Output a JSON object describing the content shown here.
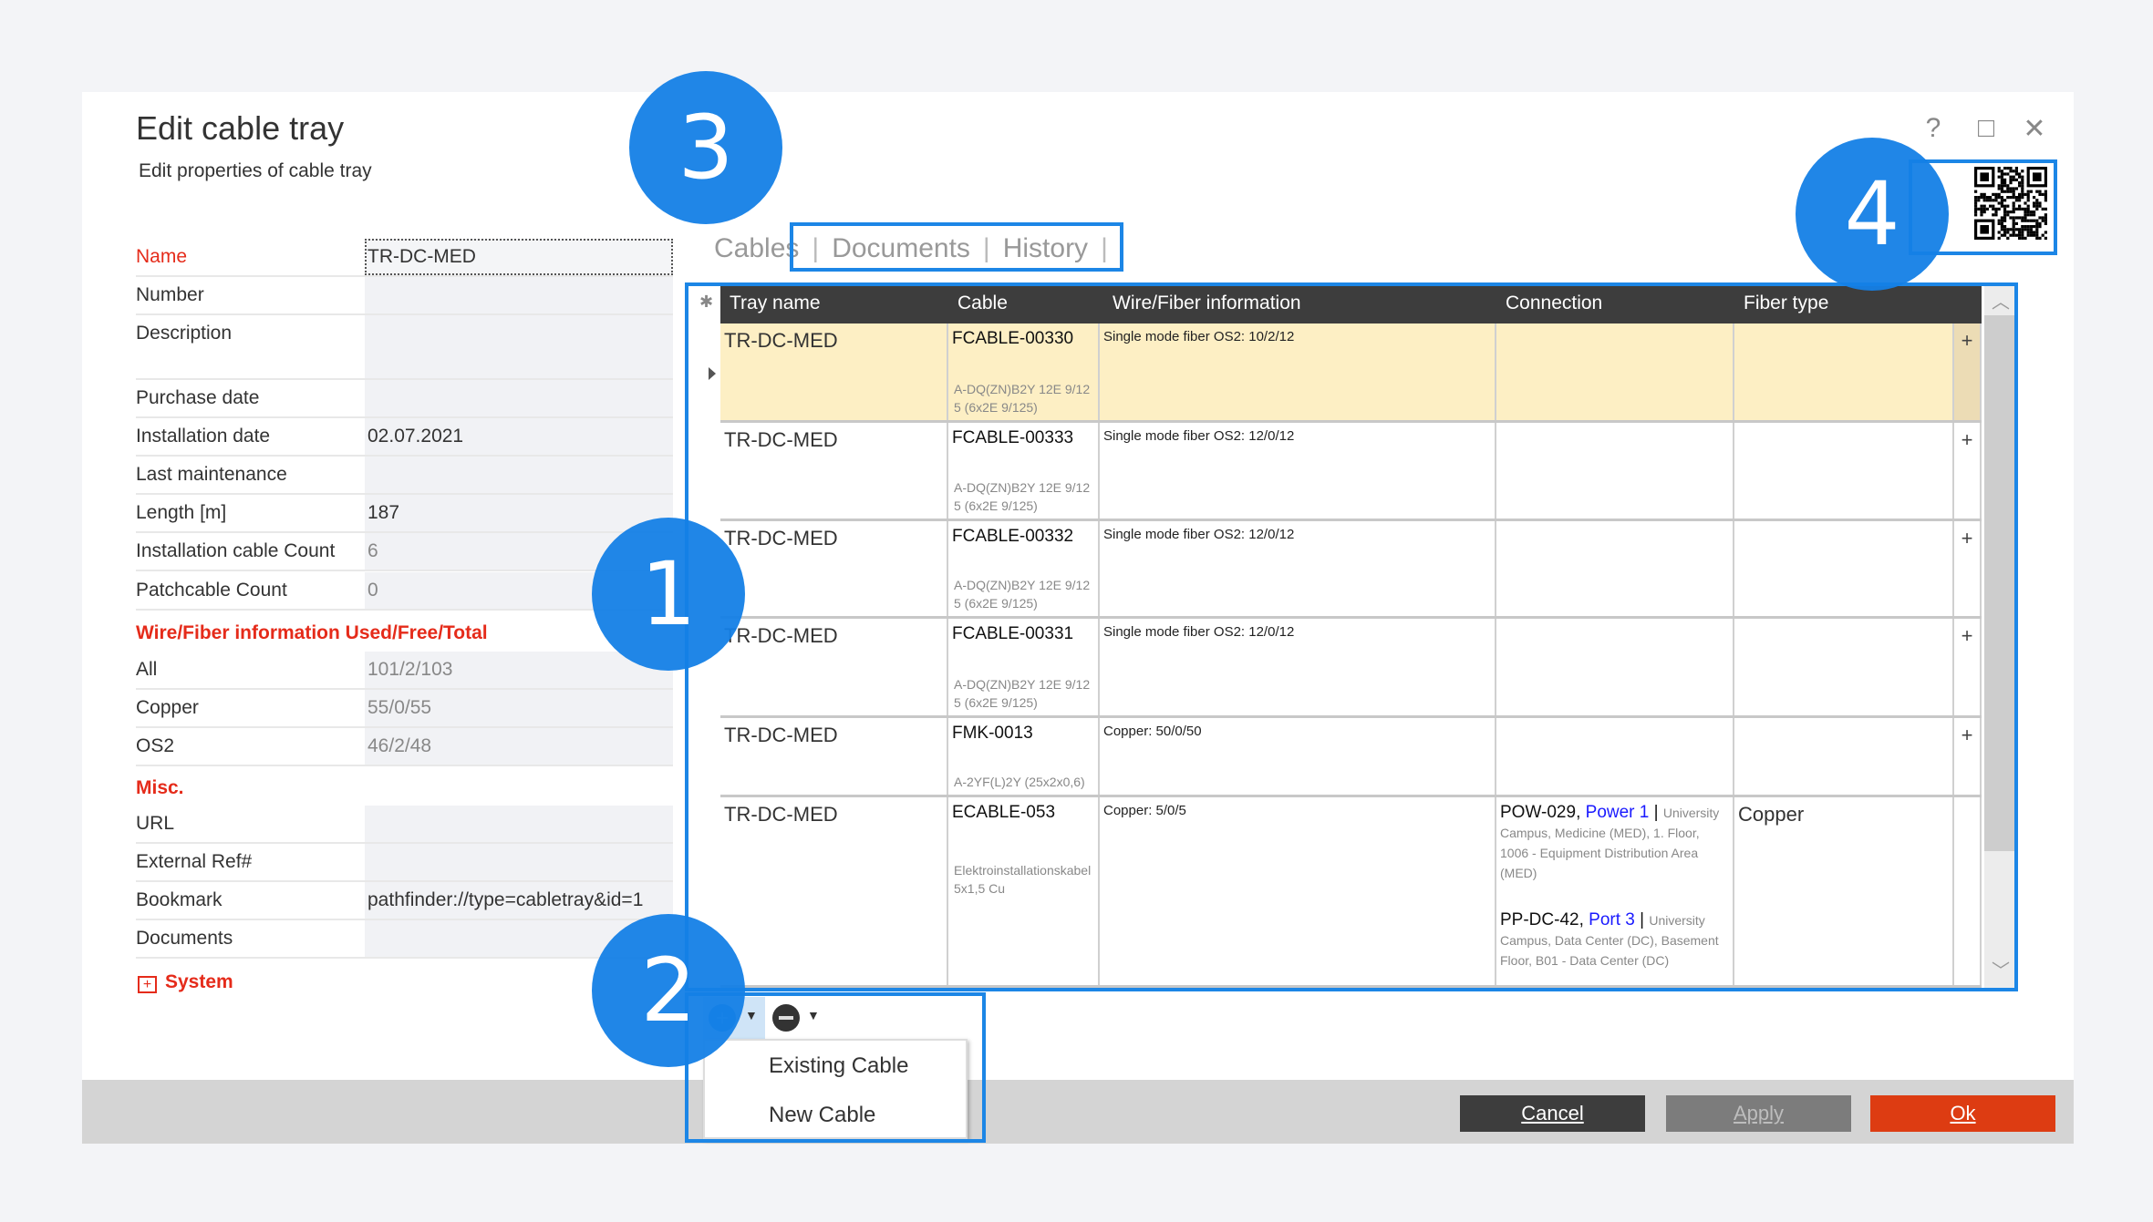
{
  "dialog": {
    "title": "Edit cable tray",
    "subtitle": "Edit properties of cable tray",
    "help_icon": "?",
    "maximize_icon": "□",
    "close_icon": "✕"
  },
  "form": {
    "rows": [
      {
        "label": "Name",
        "value": "TR-DC-MED"
      },
      {
        "label": "Number",
        "value": ""
      },
      {
        "label": "Description",
        "value": ""
      },
      {
        "label": "Purchase date",
        "value": ""
      },
      {
        "label": "Installation date",
        "value": "02.07.2021"
      },
      {
        "label": "Last maintenance",
        "value": ""
      },
      {
        "label": "Length [m]",
        "value": "187"
      },
      {
        "label": "Installation cable Count",
        "value": "6"
      },
      {
        "label": "Patchcable Count",
        "value": "0"
      }
    ],
    "wire_section": "Wire/Fiber information Used/Free/Total",
    "wire_rows": [
      {
        "label": "All",
        "value": "101/2/103"
      },
      {
        "label": "Copper",
        "value": "55/0/55"
      },
      {
        "label": "OS2",
        "value": "46/2/48"
      }
    ],
    "misc_section": "Misc.",
    "misc_rows": [
      {
        "label": "URL",
        "value": ""
      },
      {
        "label": "External Ref#",
        "value": ""
      },
      {
        "label": "Bookmark",
        "value": "pathfinder://type=cabletray&id=1"
      },
      {
        "label": "Documents",
        "value": ""
      }
    ],
    "system_section": "System",
    "system_expand": "+"
  },
  "tabs": [
    {
      "label": "Cables"
    },
    {
      "label": "Documents"
    },
    {
      "label": "History"
    }
  ],
  "grid": {
    "columns": [
      "Tray name",
      "Cable",
      "Wire/Fiber information",
      "Connection",
      "Fiber type"
    ],
    "new_row_icon": "✱",
    "rows": [
      {
        "tray": "TR-DC-MED",
        "cable": "FCABLE-00330",
        "cable_type": "A-DQ(ZN)B2Y 12E 9/125 (6x2E 9/125)",
        "wire": "Single mode fiber OS2: 10/2/12",
        "fiber": "",
        "expand": "+"
      },
      {
        "tray": "TR-DC-MED",
        "cable": "FCABLE-00333",
        "cable_type": "A-DQ(ZN)B2Y 12E 9/125 (6x2E 9/125)",
        "wire": "Single mode fiber OS2: 12/0/12",
        "fiber": "",
        "expand": "+"
      },
      {
        "tray": "TR-DC-MED",
        "cable": "FCABLE-00332",
        "cable_type": "A-DQ(ZN)B2Y 12E 9/125 (6x2E 9/125)",
        "wire": "Single mode fiber OS2: 12/0/12",
        "fiber": "",
        "expand": "+"
      },
      {
        "tray": "TR-DC-MED",
        "cable": "FCABLE-00331",
        "cable_type": "A-DQ(ZN)B2Y 12E 9/125 (6x2E 9/125)",
        "wire": "Single mode fiber OS2: 12/0/12",
        "fiber": "",
        "expand": "+"
      },
      {
        "tray": "TR-DC-MED",
        "cable": "FMK-0013",
        "cable_type": "A-2YF(L)2Y (25x2x0,6)",
        "wire": "Copper: 50/0/50",
        "fiber": "",
        "expand": "+"
      },
      {
        "tray": "TR-DC-MED",
        "cable": "ECABLE-053",
        "cable_type": "Elektroinstallationskabel 5x1,5 Cu",
        "wire": "Copper: 5/0/5",
        "fiber": "Copper",
        "expand": "",
        "connections": [
          {
            "device": "POW-029,",
            "port": "Power 1",
            "sep": "|",
            "location": "University Campus, Medicine (MED), 1. Floor, 1006 - Equipment Distribution Area (MED)"
          },
          {
            "device": "PP-DC-42,",
            "port": "Port 3",
            "sep": "|",
            "location": "University Campus, Data Center (DC), Basement Floor, B01 - Data Center (DC)"
          }
        ]
      }
    ]
  },
  "toolbar": {
    "add_menu": [
      "Existing Cable",
      "New Cable"
    ]
  },
  "buttons": {
    "cancel": "Cancel",
    "apply": "Apply",
    "ok": "Ok"
  },
  "callouts": [
    "1",
    "2",
    "3",
    "4"
  ],
  "colors": {
    "accent": "#1c86e6",
    "section_red": "#e52b1a",
    "selected_row": "#fdefc4",
    "ok": "#dd3c12",
    "cancel": "#3d3d3d",
    "apply": "#7c7c7c"
  }
}
